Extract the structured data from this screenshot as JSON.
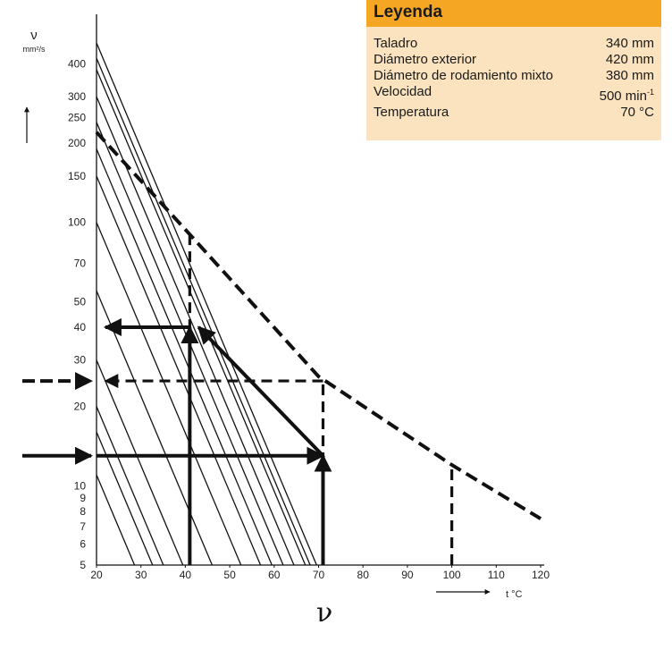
{
  "chart_data": {
    "type": "line",
    "title": "",
    "xlabel": "t °C",
    "ylabel_symbol": "ν",
    "ylabel_unit": "mm²/s",
    "x_ticks": [
      20,
      30,
      40,
      50,
      60,
      70,
      80,
      90,
      100,
      110,
      120
    ],
    "y_ticks": [
      5,
      6,
      7,
      8,
      9,
      10,
      20,
      30,
      40,
      50,
      70,
      100,
      150,
      200,
      250,
      300,
      400
    ],
    "xlim": [
      20,
      120
    ],
    "ylim": [
      5,
      480
    ],
    "y_scale": "log",
    "grid": false,
    "families": {
      "note": "",
      "diagonals_y_at_x20": [
        11,
        16,
        20,
        30,
        55,
        100,
        150,
        190,
        240,
        300,
        380,
        420,
        480
      ]
    },
    "series": [
      {
        "x": [
          20,
          41,
          70,
          100,
          120
        ],
        "y": [
          220,
          90,
          26,
          12,
          7.5
        ],
        "style": "dashed"
      },
      {
        "x": [
          40,
          40,
          70,
          70,
          40
        ],
        "y": [
          5,
          40,
          26,
          5,
          40
        ],
        "style": "solid"
      }
    ],
    "annotations": [
      {
        "x": [
          20,
          71
        ],
        "y": [
          13,
          13
        ],
        "style": "solid-arrow"
      },
      {
        "x": [
          71,
          43
        ],
        "y": [
          13,
          40
        ],
        "style": "solid-arrow"
      },
      {
        "x": [
          41,
          22
        ],
        "y": [
          40,
          40
        ],
        "style": "solid-arrow"
      },
      {
        "x": [
          71,
          22
        ],
        "y": [
          25,
          25
        ],
        "style": "dashed-arrow"
      },
      {
        "x": [
          71,
          71
        ],
        "y": [
          5,
          25
        ],
        "style": "dashed"
      },
      {
        "x": [
          41,
          41
        ],
        "y": [
          25,
          90
        ],
        "style": "dashed"
      },
      {
        "x": [
          100,
          100
        ],
        "y": [
          5,
          12
        ],
        "style": "dashed"
      },
      {
        "x": [
          71,
          71
        ],
        "y": [
          5,
          13
        ],
        "style": "solid-arrow"
      },
      {
        "x": [
          41,
          41
        ],
        "y": [
          5,
          40
        ],
        "style": "solid-arrow"
      }
    ],
    "outer_arrows_y": [
      25,
      13
    ]
  },
  "legend": {
    "title": "Leyenda",
    "rows": [
      {
        "label": "Taladro",
        "value": "340 mm",
        "sup": ""
      },
      {
        "label": "Diámetro exterior",
        "value": "420 mm",
        "sup": ""
      },
      {
        "label": "Diámetro de rodamiento mixto",
        "value": "380 mm",
        "sup": ""
      },
      {
        "label": "Velocidad",
        "value": "500 min",
        "sup": "-1"
      },
      {
        "label": "Temperatura",
        "value": "70 °C",
        "sup": ""
      }
    ]
  },
  "bottom_symbol": "ν"
}
